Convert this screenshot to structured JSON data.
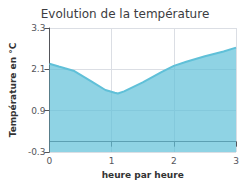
{
  "chart_data": {
    "type": "area",
    "title": "Evolution de la température",
    "xlabel": "heure par heure",
    "ylabel": "Température en °C",
    "x": [
      0,
      0.15,
      0.4,
      0.7,
      0.9,
      1.05,
      1.1,
      1.2,
      1.5,
      1.8,
      2.0,
      2.2,
      2.5,
      2.8,
      3.0
    ],
    "values": [
      2.26,
      2.18,
      2.05,
      1.72,
      1.5,
      1.42,
      1.4,
      1.46,
      1.72,
      2.02,
      2.2,
      2.32,
      2.48,
      2.62,
      2.73
    ],
    "color": "#60c0d8",
    "xlim": [
      0,
      3
    ],
    "xticks": [
      0,
      1,
      2,
      3
    ],
    "ylim": [
      -0.3,
      3.3
    ],
    "yticks": [
      -0.3,
      0.9,
      2.1,
      3.3
    ],
    "grid": true
  }
}
